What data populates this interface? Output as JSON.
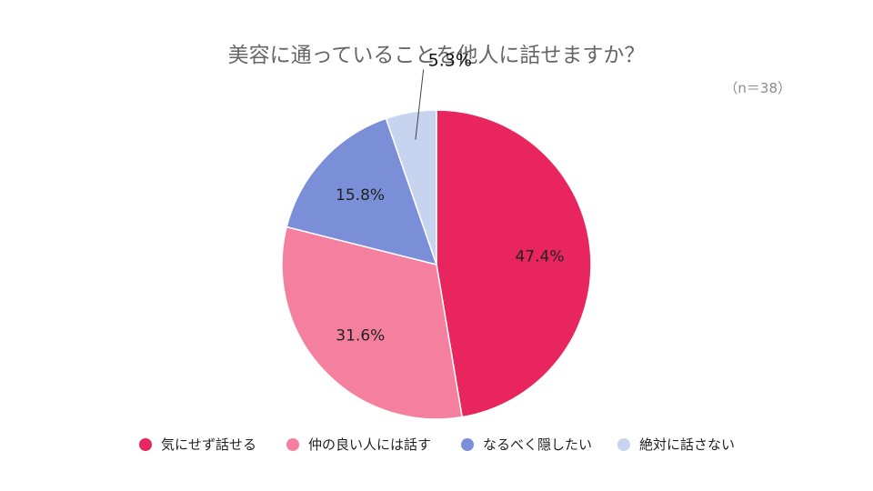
{
  "chart_data": {
    "type": "pie",
    "title": "美容に通っていることを他人に話せますか？",
    "subtitle": "（n＝38）",
    "legend_position": "bottom",
    "slices": [
      {
        "name": "気にせず話せる",
        "value": 47.4,
        "label": "47.4%",
        "color": "#e8255f"
      },
      {
        "name": "仲の良い人には話す",
        "value": 31.6,
        "label": "31.6%",
        "color": "#f47f9f"
      },
      {
        "name": "なるべく隠したい",
        "value": 15.8,
        "label": "15.8%",
        "color": "#7b8fd8"
      },
      {
        "name": "絶対に話さない",
        "value": 5.3,
        "label": "5.3%",
        "color": "#c6d4f0"
      }
    ]
  }
}
